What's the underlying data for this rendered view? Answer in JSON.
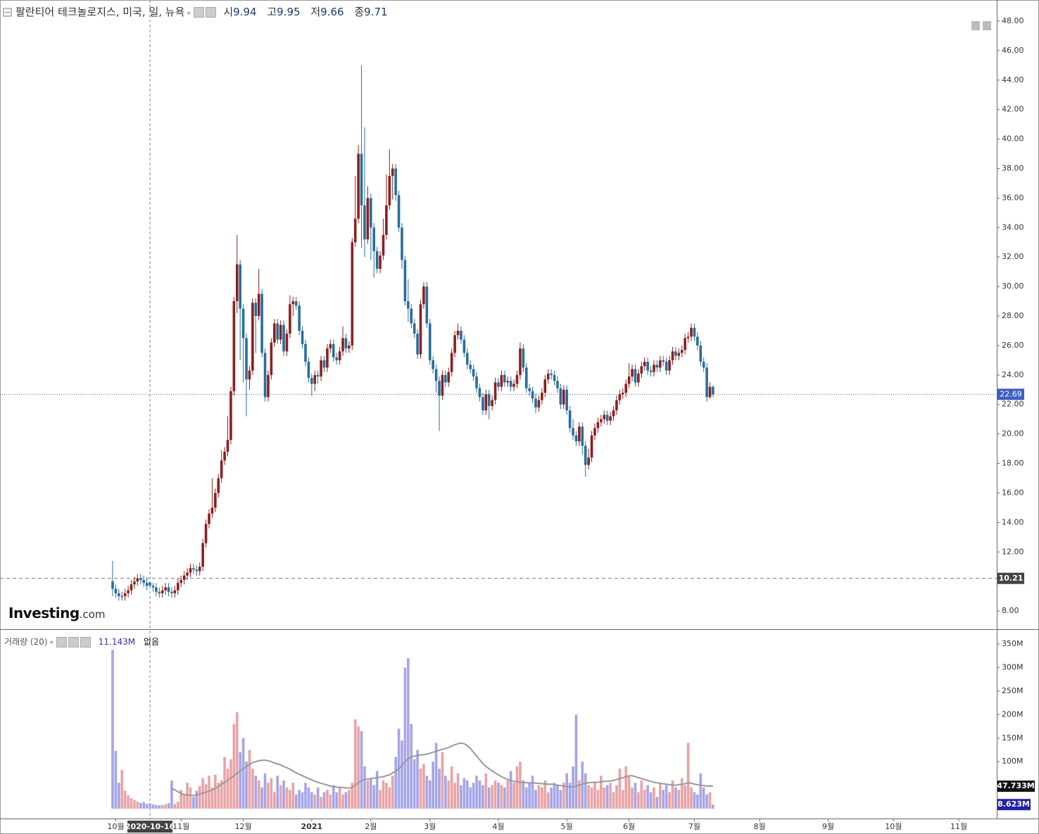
{
  "header": {
    "title": "팔란티어 테크놀로지스, 미국, 일, 뉴욕",
    "ohlc_labels": [
      "시",
      "고",
      "저",
      "종"
    ]
  },
  "logo": {
    "brand": "Investing",
    "suffix": ".com"
  },
  "volume_legend": {
    "title": "거래량 (20)",
    "value": {
      "value": 11.143,
      "label": "11.143M"
    },
    "status": "없음"
  },
  "chart_data": {
    "type": "candlestick",
    "up_color": "#8e1f1f",
    "down_color": "#2a6d9e",
    "last_price_color": "#3d5fc4",
    "xlim": [
      -36.2,
      284.2
    ],
    "xticks": [
      {
        "value": 1,
        "label": "10월"
      },
      {
        "value": 22,
        "label": "11월"
      },
      {
        "value": 42,
        "label": "12월"
      },
      {
        "value": 64,
        "label": "2021"
      },
      {
        "value": 83,
        "label": "2월"
      },
      {
        "value": 102,
        "label": "3월"
      },
      {
        "value": 124,
        "label": "4월"
      },
      {
        "value": 146,
        "label": "5월"
      },
      {
        "value": 166,
        "label": "6월"
      },
      {
        "value": 187,
        "label": "7월"
      },
      {
        "value": 208,
        "label": "8월"
      },
      {
        "value": 230,
        "label": "9월"
      },
      {
        "value": 251,
        "label": "10월"
      },
      {
        "value": 272,
        "label": "11월"
      }
    ],
    "ylim": [
      6.81,
      49.43
    ],
    "yticks": [
      {
        "value": 8,
        "label": "8.00"
      },
      {
        "value": 10,
        "label": "10.00"
      },
      {
        "value": 12,
        "label": "12.00"
      },
      {
        "value": 14,
        "label": "14.00"
      },
      {
        "value": 16,
        "label": "16.00"
      },
      {
        "value": 18,
        "label": "18.00"
      },
      {
        "value": 20,
        "label": "20.00"
      },
      {
        "value": 22,
        "label": "22.00"
      },
      {
        "value": 24,
        "label": "24.00"
      },
      {
        "value": 26,
        "label": "26.00"
      },
      {
        "value": 28,
        "label": "28.00"
      },
      {
        "value": 30,
        "label": "30.00"
      },
      {
        "value": 32,
        "label": "32.00"
      },
      {
        "value": 34,
        "label": "34.00"
      },
      {
        "value": 36,
        "label": "36.00"
      },
      {
        "value": 38,
        "label": "38.00"
      },
      {
        "value": 40,
        "label": "40.00"
      },
      {
        "value": 42,
        "label": "42.00"
      },
      {
        "value": 44,
        "label": "44.00"
      },
      {
        "value": 46,
        "label": "46.00"
      },
      {
        "value": 48,
        "label": "48.00"
      }
    ],
    "grid": false,
    "reference_line": {
      "value": 10.21
    },
    "crosshair": {
      "x": 12,
      "label": "2020-10-16"
    },
    "open": [
      10.0,
      9.5,
      9.2,
      9.0,
      9.0,
      9.2,
      9.4,
      9.8,
      10.0,
      10.2,
      10.1,
      9.9,
      9.94,
      9.71,
      9.6,
      9.3,
      9.2,
      9.4,
      9.6,
      9.3,
      9.2,
      9.4,
      9.9,
      10.1,
      10.4,
      10.6,
      10.9,
      10.8,
      10.7,
      11.0,
      12.6,
      13.9,
      14.6,
      15.0,
      16.0,
      17.0,
      18.2,
      18.8,
      19.6,
      22.9,
      29.0,
      31.5,
      28.5,
      26.5,
      23.7,
      24.3,
      28.9,
      28.0,
      29.5,
      25.5,
      22.5,
      24.0,
      26.2,
      27.5,
      26.4,
      27.4,
      25.6,
      26.8,
      28.8,
      29.0,
      28.7,
      27.0,
      26.1,
      24.9,
      23.8,
      23.4,
      24.0,
      23.9,
      25.0,
      24.5,
      25.8,
      26.1,
      25.2,
      25.0,
      25.6,
      26.5,
      25.8,
      26.0,
      33.0,
      34.6,
      39.0,
      35.5,
      33.2,
      36.0,
      34.0,
      32.4,
      31.2,
      32.1,
      33.5,
      35.5,
      37.5,
      38.0,
      36.2,
      34.0,
      31.8,
      29.0,
      28.5,
      27.5,
      26.8,
      25.4,
      28.8,
      30.0,
      27.5,
      25.0,
      24.4,
      23.6,
      22.6,
      24.0,
      23.5,
      24.2,
      25.5,
      26.7,
      27.0,
      26.4,
      25.5,
      24.7,
      24.4,
      23.9,
      23.1,
      22.5,
      21.6,
      22.7,
      21.9,
      22.3,
      23.5,
      23.2,
      24.0,
      23.5,
      23.6,
      23.2,
      23.4,
      24.0,
      25.8,
      24.5,
      23.1,
      22.9,
      22.4,
      21.8,
      22.3,
      22.8,
      23.7,
      24.1,
      24.0,
      23.6,
      23.1,
      22.0,
      23.0,
      21.6,
      20.4,
      19.9,
      19.5,
      20.5,
      19.2,
      17.9,
      18.4,
      19.9,
      20.4,
      20.8,
      21.0,
      21.3,
      20.9,
      21.2,
      21.6,
      22.3,
      22.7,
      22.8,
      23.4,
      23.9,
      24.4,
      23.5,
      24.1,
      24.6,
      24.9,
      24.3,
      24.2,
      24.7,
      24.5,
      25.0,
      24.9,
      24.3,
      25.0,
      25.6,
      25.3,
      25.5,
      25.7,
      26.5,
      26.6,
      27.2,
      26.6,
      26.0,
      24.9,
      24.5,
      22.5,
      23.2
    ],
    "high": [
      11.4,
      9.8,
      9.5,
      9.3,
      9.5,
      9.7,
      10.1,
      10.3,
      10.5,
      10.5,
      10.4,
      10.2,
      9.95,
      9.9,
      9.9,
      9.6,
      9.7,
      9.9,
      9.9,
      9.6,
      9.7,
      10.2,
      10.4,
      10.7,
      10.9,
      11.2,
      11.2,
      11.1,
      11.3,
      12.9,
      14.2,
      14.9,
      17.0,
      16.3,
      17.3,
      18.9,
      19.1,
      21.2,
      23.2,
      29.3,
      33.5,
      31.8,
      28.8,
      26.8,
      24.6,
      29.2,
      29.2,
      31.2,
      29.8,
      25.8,
      24.3,
      26.5,
      27.8,
      27.8,
      27.7,
      27.7,
      27.1,
      29.4,
      29.3,
      29.3,
      29.0,
      27.3,
      26.4,
      25.2,
      24.1,
      24.3,
      24.3,
      25.3,
      25.3,
      26.1,
      26.4,
      26.4,
      25.5,
      25.9,
      27.3,
      26.8,
      26.3,
      33.3,
      37.5,
      39.6,
      45.0,
      40.8,
      36.8,
      36.3,
      34.3,
      32.7,
      32.4,
      34.6,
      37.6,
      39.3,
      38.3,
      38.3,
      36.5,
      34.3,
      32.1,
      30.5,
      28.8,
      27.8,
      27.1,
      29.1,
      30.3,
      30.3,
      27.8,
      25.3,
      24.7,
      23.9,
      24.3,
      24.3,
      24.5,
      25.8,
      27.0,
      27.5,
      27.3,
      26.7,
      25.8,
      25.0,
      24.7,
      24.2,
      23.4,
      22.8,
      23.0,
      23.0,
      22.6,
      23.8,
      23.8,
      24.3,
      24.3,
      23.9,
      23.9,
      23.7,
      24.3,
      26.2,
      26.1,
      24.8,
      23.4,
      23.2,
      22.7,
      22.6,
      23.1,
      24.0,
      24.4,
      24.4,
      24.3,
      23.9,
      23.4,
      23.3,
      23.3,
      21.9,
      21.0,
      20.2,
      20.8,
      20.8,
      19.5,
      19.0,
      20.2,
      20.7,
      21.1,
      21.3,
      21.6,
      21.6,
      21.5,
      21.9,
      22.6,
      23.0,
      23.1,
      23.7,
      24.8,
      24.7,
      24.7,
      24.4,
      24.9,
      25.2,
      25.2,
      24.6,
      25.0,
      25.0,
      25.3,
      25.3,
      25.2,
      25.3,
      25.9,
      25.9,
      25.8,
      26.0,
      26.8,
      26.9,
      27.5,
      27.5,
      26.9,
      26.3,
      25.2,
      24.8,
      23.5,
      23.3
    ],
    "low": [
      9.0,
      8.9,
      8.7,
      8.7,
      8.7,
      8.9,
      9.1,
      9.5,
      9.7,
      9.8,
      9.6,
      9.4,
      9.66,
      9.3,
      9.0,
      8.9,
      8.9,
      9.1,
      9.0,
      8.9,
      8.9,
      9.1,
      9.6,
      9.8,
      10.1,
      10.3,
      10.5,
      10.4,
      10.4,
      10.7,
      12.3,
      13.6,
      14.3,
      14.7,
      15.7,
      16.7,
      17.9,
      18.5,
      19.3,
      22.6,
      28.2,
      25.0,
      23.5,
      21.2,
      23.0,
      24.0,
      25.5,
      27.7,
      25.2,
      22.2,
      22.2,
      23.7,
      25.9,
      26.1,
      26.1,
      25.3,
      25.3,
      26.5,
      28.0,
      28.4,
      26.7,
      25.8,
      24.6,
      23.5,
      22.6,
      22.9,
      23.4,
      23.6,
      24.2,
      24.2,
      25.5,
      24.9,
      24.7,
      24.7,
      25.3,
      25.5,
      25.5,
      25.7,
      32.7,
      34.3,
      32.6,
      32.0,
      32.9,
      31.8,
      30.6,
      30.9,
      30.9,
      31.8,
      33.2,
      35.2,
      35.9,
      35.8,
      33.7,
      31.2,
      28.7,
      27.6,
      27.2,
      26.5,
      25.1,
      25.1,
      28.5,
      27.2,
      24.7,
      24.1,
      22.8,
      20.2,
      22.3,
      23.2,
      23.2,
      23.9,
      25.2,
      26.4,
      26.1,
      25.2,
      24.4,
      24.1,
      23.6,
      22.8,
      22.2,
      21.3,
      21.3,
      21.0,
      21.6,
      22.0,
      22.9,
      22.9,
      23.2,
      23.2,
      22.9,
      22.9,
      23.1,
      23.7,
      24.2,
      22.8,
      22.6,
      22.1,
      21.4,
      21.5,
      22.0,
      22.5,
      23.4,
      23.7,
      23.3,
      22.8,
      21.7,
      21.7,
      21.3,
      20.1,
      19.6,
      19.2,
      19.2,
      18.6,
      17.1,
      17.6,
      18.1,
      19.6,
      20.1,
      20.5,
      20.7,
      20.6,
      20.6,
      20.9,
      21.3,
      22.0,
      22.4,
      22.5,
      23.1,
      23.6,
      23.2,
      23.2,
      23.8,
      24.3,
      24.0,
      23.9,
      23.9,
      24.2,
      24.2,
      24.6,
      24.0,
      24.0,
      24.7,
      25.0,
      25.0,
      25.2,
      25.4,
      26.2,
      26.3,
      26.3,
      25.7,
      24.6,
      24.2,
      22.2,
      22.4,
      22.5
    ],
    "close": [
      9.5,
      9.2,
      9.0,
      9.0,
      9.2,
      9.4,
      9.8,
      10.0,
      10.2,
      10.1,
      9.9,
      9.7,
      9.71,
      9.6,
      9.3,
      9.2,
      9.4,
      9.6,
      9.3,
      9.2,
      9.4,
      9.9,
      10.1,
      10.4,
      10.6,
      10.9,
      10.8,
      10.7,
      11.0,
      12.6,
      13.9,
      14.6,
      15.0,
      16.0,
      17.0,
      18.2,
      18.8,
      19.6,
      22.9,
      29.0,
      31.5,
      28.5,
      26.5,
      23.7,
      24.3,
      28.9,
      28.0,
      29.5,
      25.5,
      22.5,
      24.0,
      26.2,
      27.5,
      26.4,
      27.4,
      25.6,
      26.8,
      28.8,
      29.0,
      28.7,
      27.0,
      26.1,
      24.9,
      23.8,
      23.4,
      24.0,
      23.9,
      25.0,
      24.5,
      25.8,
      26.1,
      25.2,
      25.0,
      25.6,
      26.5,
      25.8,
      26.0,
      33.0,
      34.6,
      39.0,
      35.5,
      33.2,
      36.0,
      34.0,
      32.4,
      31.2,
      32.1,
      33.5,
      35.5,
      37.5,
      38.0,
      36.2,
      34.0,
      31.8,
      29.0,
      28.5,
      27.5,
      26.8,
      25.4,
      28.8,
      30.0,
      27.5,
      25.0,
      24.4,
      23.6,
      22.6,
      24.0,
      23.5,
      24.2,
      25.5,
      26.7,
      27.0,
      26.4,
      25.5,
      24.7,
      24.4,
      23.9,
      23.1,
      22.5,
      21.6,
      22.7,
      21.9,
      22.3,
      23.5,
      23.2,
      24.0,
      23.5,
      23.6,
      23.2,
      23.4,
      24.0,
      25.8,
      24.5,
      23.1,
      22.9,
      22.4,
      21.8,
      22.3,
      22.8,
      23.7,
      24.1,
      24.0,
      23.6,
      23.1,
      22.0,
      23.0,
      21.6,
      20.4,
      19.9,
      19.5,
      20.5,
      19.2,
      17.9,
      18.4,
      19.9,
      20.4,
      20.8,
      21.0,
      21.3,
      20.9,
      21.2,
      21.6,
      22.3,
      22.7,
      22.8,
      23.4,
      23.9,
      24.4,
      23.5,
      24.1,
      24.6,
      24.9,
      24.3,
      24.2,
      24.7,
      24.5,
      25.0,
      24.9,
      24.3,
      25.0,
      25.6,
      25.3,
      25.5,
      25.7,
      26.5,
      26.6,
      27.2,
      26.6,
      26.0,
      24.9,
      24.5,
      22.5,
      23.2,
      22.69
    ],
    "volume": {
      "up_color": "#e9a3a5",
      "down_color": "#a5a5e9",
      "ylim": [
        -19.5,
        375.7
      ],
      "yticks": [
        {
          "value": 50,
          "label": "50M"
        },
        {
          "value": 100,
          "label": "100M"
        },
        {
          "value": 150,
          "label": "150M"
        },
        {
          "value": 200,
          "label": "200M"
        },
        {
          "value": 250,
          "label": "250M"
        },
        {
          "value": 300,
          "label": "300M"
        },
        {
          "value": 350,
          "label": "350M"
        }
      ],
      "values": [
        338,
        123,
        55,
        82,
        38,
        28,
        22,
        18,
        15,
        12,
        14,
        10,
        11.143,
        9,
        8,
        7,
        8,
        9,
        12,
        60,
        10,
        15,
        40,
        30,
        55,
        45,
        25,
        38,
        48,
        65,
        52,
        70,
        45,
        72,
        55,
        60,
        110,
        85,
        105,
        180,
        205,
        120,
        150,
        100,
        125,
        85,
        70,
        60,
        45,
        75,
        55,
        65,
        35,
        70,
        50,
        60,
        45,
        40,
        55,
        30,
        40,
        35,
        55,
        45,
        35,
        30,
        45,
        25,
        35,
        40,
        30,
        50,
        35,
        45,
        30,
        35,
        40,
        55,
        190,
        175,
        165,
        90,
        60,
        65,
        50,
        80,
        40,
        60,
        55,
        45,
        70,
        110,
        170,
        145,
        300,
        320,
        180,
        105,
        125,
        85,
        95,
        70,
        60,
        100,
        140,
        85,
        120,
        70,
        60,
        90,
        55,
        75,
        50,
        65,
        60,
        45,
        55,
        70,
        60,
        50,
        75,
        45,
        50,
        60,
        55,
        50,
        45,
        60,
        80,
        55,
        90,
        100,
        60,
        45,
        55,
        70,
        40,
        50,
        45,
        60,
        35,
        45,
        55,
        50,
        40,
        55,
        75,
        55,
        90,
        200,
        60,
        100,
        75,
        50,
        45,
        55,
        40,
        70,
        45,
        50,
        55,
        35,
        50,
        85,
        40,
        90,
        70,
        45,
        55,
        35,
        60,
        40,
        50,
        35,
        45,
        25,
        55,
        40,
        50,
        35,
        60,
        45,
        40,
        65,
        50,
        140,
        45,
        35,
        30,
        75,
        45,
        30,
        35,
        8.623
      ],
      "last_label": {
        "value": 8.623,
        "label": "8.623M"
      },
      "ma": {
        "color": "#999999",
        "last_label": {
          "value": 47.733,
          "label": "47.733M"
        },
        "values": [
          null,
          null,
          null,
          null,
          null,
          null,
          null,
          null,
          null,
          null,
          null,
          null,
          null,
          null,
          null,
          null,
          null,
          null,
          null,
          43,
          40,
          36,
          32,
          30,
          29,
          28,
          28,
          29,
          31,
          33,
          35,
          37,
          40,
          43,
          47,
          52,
          56,
          60,
          65,
          70,
          75,
          80,
          85,
          90,
          94,
          98,
          100,
          102,
          103,
          103,
          102,
          100,
          97,
          95,
          93,
          90,
          87,
          84,
          80,
          76,
          73,
          70,
          67,
          64,
          61,
          58,
          56,
          54,
          52,
          50,
          48,
          47,
          46,
          45,
          45,
          44,
          44,
          45,
          50,
          55,
          60,
          62,
          63,
          64,
          65,
          66,
          67,
          68,
          70,
          72,
          76,
          80,
          85,
          92,
          100,
          106,
          110,
          112,
          113,
          114,
          115,
          116,
          118,
          120,
          122,
          124,
          126,
          128,
          130,
          133,
          136,
          138,
          140,
          138,
          134,
          128,
          120,
          112,
          104,
          96,
          90,
          85,
          80,
          76,
          72,
          68,
          65,
          62,
          60,
          58,
          57,
          56,
          56,
          55,
          55,
          55,
          54,
          54,
          53,
          53,
          52,
          52,
          51,
          50,
          49,
          48,
          47,
          46,
          46,
          48,
          50,
          52,
          54,
          55,
          56,
          56,
          56,
          57,
          58,
          58,
          59,
          60,
          62,
          64,
          66,
          68,
          70,
          70,
          68,
          66,
          64,
          62,
          60,
          58,
          56,
          55,
          54,
          53,
          52,
          51,
          50,
          50,
          51,
          52,
          53,
          55,
          54,
          52,
          51,
          50,
          49,
          48,
          48,
          47.733
        ]
      }
    }
  }
}
